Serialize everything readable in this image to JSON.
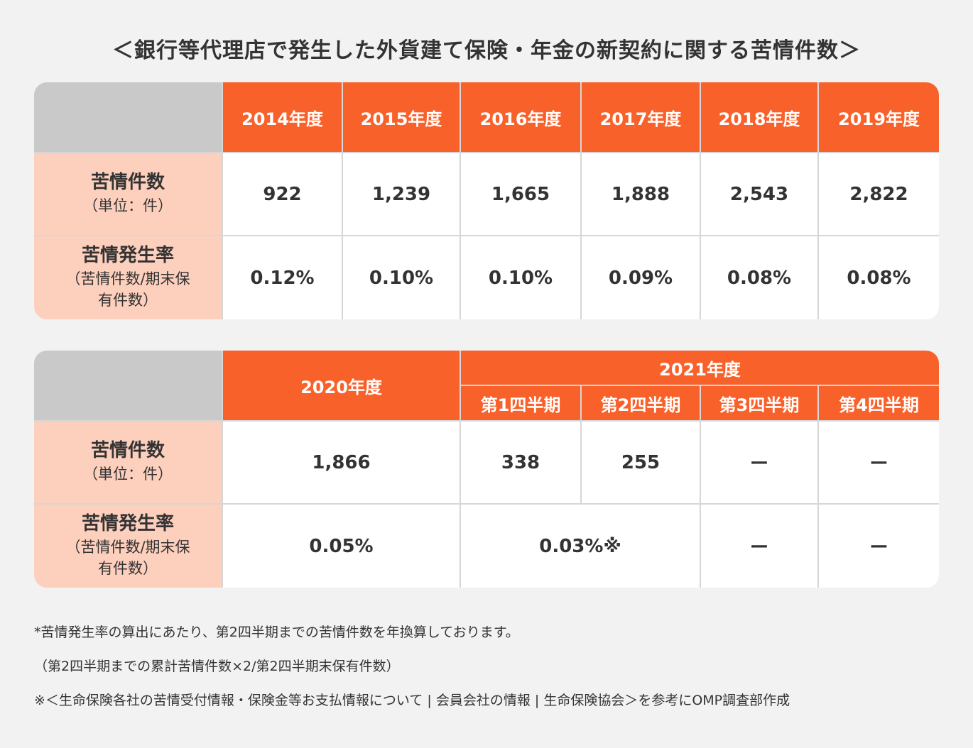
{
  "title": "＜銀行等代理店で発生した外貨建て保険・年金の新契約に関する苦情件数＞",
  "colors": {
    "header": "#f9612b",
    "label_bg": "#fdcfbd",
    "corner": "#c9c9c9",
    "background": "#f2f2f2"
  },
  "table1": {
    "years": [
      "2014年度",
      "2015年度",
      "2016年度",
      "2017年度",
      "2018年度",
      "2019年度"
    ],
    "row_counts": {
      "label": "苦情件数",
      "sub": "（単位：件）",
      "values": [
        "922",
        "1,239",
        "1,665",
        "1,888",
        "2,543",
        "2,822"
      ]
    },
    "row_rate": {
      "label": "苦情発生率",
      "sub1": "（苦情件数/期末保",
      "sub2": "有件数）",
      "values": [
        "0.12%",
        "0.10%",
        "0.10%",
        "0.09%",
        "0.08%",
        "0.08%"
      ]
    }
  },
  "table2": {
    "year_2020": "2020年度",
    "year_2021": "2021年度",
    "quarters": [
      "第1四半期",
      "第2四半期",
      "第3四半期",
      "第4四半期"
    ],
    "row_counts": {
      "label": "苦情件数",
      "sub": "（単位：件）",
      "v2020": "1,866",
      "q": [
        "338",
        "255",
        "ー",
        "ー"
      ]
    },
    "row_rate": {
      "label": "苦情発生率",
      "sub1": "（苦情件数/期末保",
      "sub2": "有件数）",
      "v2020": "0.05%",
      "q12": "0.03%※",
      "q3": "ー",
      "q4": "ー"
    }
  },
  "notes": [
    "*苦情発生率の算出にあたり、第2四半期までの苦情件数を年換算しております。",
    "（第2四半期までの累計苦情件数×2/第2四半期末保有件数）",
    "※＜生命保険各社の苦情受付情報・保険金等お支払情報について | 会員会社の情報 | 生命保険協会＞を参考にOMP調査部作成"
  ],
  "chart_data": {
    "type": "table",
    "title": "＜銀行等代理店で発生した外貨建て保険・年金の新契約に関する苦情件数＞",
    "columns": [
      "2014年度",
      "2015年度",
      "2016年度",
      "2017年度",
      "2018年度",
      "2019年度",
      "2020年度",
      "2021年度 第1四半期",
      "2021年度 第2四半期",
      "2021年度 第3四半期",
      "2021年度 第4四半期"
    ],
    "series": [
      {
        "name": "苦情件数",
        "values": [
          922,
          1239,
          1665,
          1888,
          2543,
          2822,
          1866,
          338,
          255,
          null,
          null
        ]
      },
      {
        "name": "苦情発生率",
        "values": [
          "0.12%",
          "0.10%",
          "0.10%",
          "0.09%",
          "0.08%",
          "0.08%",
          "0.05%",
          "0.03%※",
          "0.03%※",
          null,
          null
        ]
      }
    ]
  }
}
